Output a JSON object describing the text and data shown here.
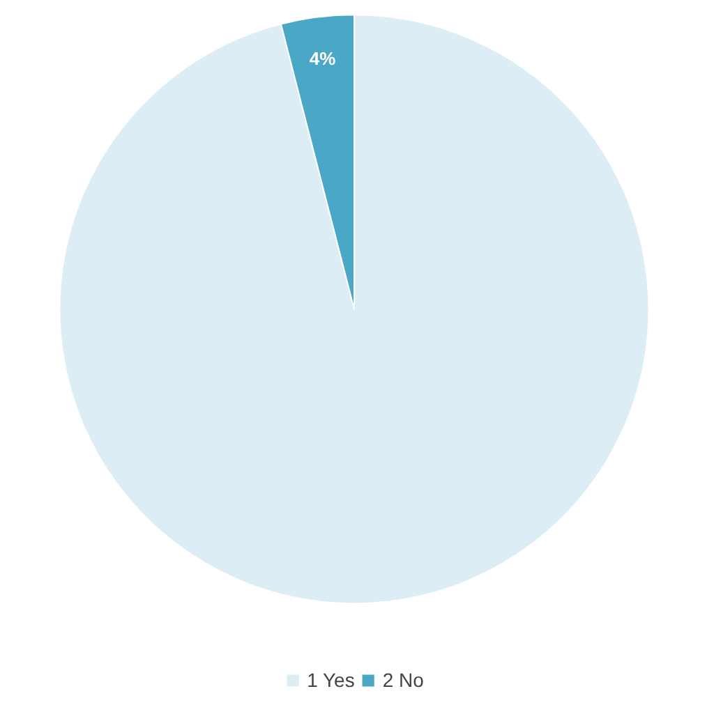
{
  "chart_data": {
    "type": "pie",
    "categories": [
      "1 Yes",
      "2 No"
    ],
    "values": [
      96,
      4
    ],
    "colors": [
      "#dcedf6",
      "#4ba7c6"
    ],
    "value_labels": [
      null,
      "4%"
    ],
    "legend": "bottom"
  }
}
